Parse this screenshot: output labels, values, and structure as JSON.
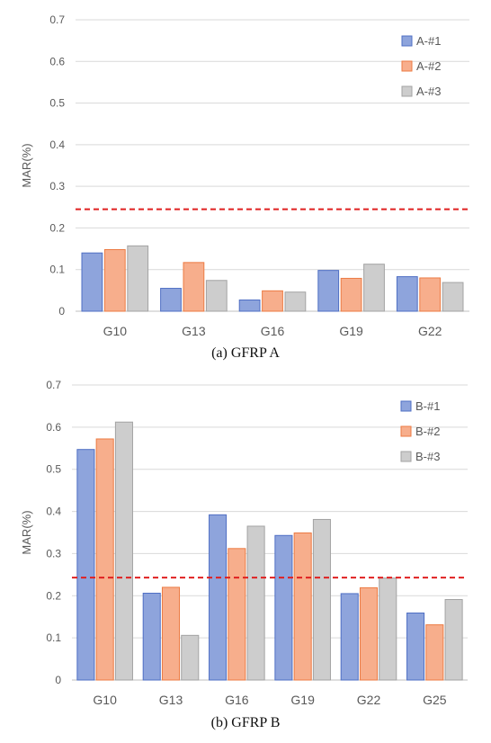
{
  "chart_data": [
    {
      "type": "bar",
      "title": "",
      "caption": "(a) GFRP A",
      "xlabel": "",
      "ylabel": "MAR(%)",
      "ylim": [
        0,
        0.7
      ],
      "yticks": [
        "0",
        "0.1",
        "0.2",
        "0.3",
        "0.4",
        "0.5",
        "0.6",
        "0.7"
      ],
      "categories": [
        "G10",
        "G13",
        "G16",
        "G19",
        "G22"
      ],
      "series": [
        {
          "name": "A-#1",
          "values": [
            0.14,
            0.055,
            0.027,
            0.098,
            0.083
          ]
        },
        {
          "name": "A-#2",
          "values": [
            0.148,
            0.117,
            0.049,
            0.079,
            0.08
          ]
        },
        {
          "name": "A-#3",
          "values": [
            0.157,
            0.074,
            0.046,
            0.113,
            0.069
          ]
        }
      ],
      "reference_line": {
        "value": 0.245,
        "style": "dashed",
        "color": "#e02020"
      },
      "grid": true,
      "legend_position": "top-right"
    },
    {
      "type": "bar",
      "title": "",
      "caption": "(b) GFRP B",
      "xlabel": "",
      "ylabel": "MAR(%)",
      "ylim": [
        0,
        0.7
      ],
      "yticks": [
        "0",
        "0.1",
        "0.2",
        "0.3",
        "0.4",
        "0.5",
        "0.6",
        "0.7"
      ],
      "categories": [
        "G10",
        "G13",
        "G16",
        "G19",
        "G22",
        "G25"
      ],
      "series": [
        {
          "name": "B-#1",
          "values": [
            0.547,
            0.206,
            0.392,
            0.343,
            0.205,
            0.159
          ]
        },
        {
          "name": "B-#2",
          "values": [
            0.572,
            0.22,
            0.312,
            0.349,
            0.219,
            0.131
          ]
        },
        {
          "name": "B-#3",
          "values": [
            0.612,
            0.106,
            0.365,
            0.381,
            0.242,
            0.191
          ]
        }
      ],
      "reference_line": {
        "value": 0.243,
        "style": "dashed",
        "color": "#e02020"
      },
      "grid": true,
      "legend_position": "top-right"
    }
  ],
  "colors": {
    "series_fill": [
      "#8ea4dc",
      "#f7ae8c",
      "#cdcdcd"
    ],
    "series_stroke": [
      "#4f6fc4",
      "#ec7b43",
      "#a3a3a3"
    ],
    "grid": "#d9d9d9",
    "axis_text": "#595959",
    "reference": "#e02020"
  }
}
